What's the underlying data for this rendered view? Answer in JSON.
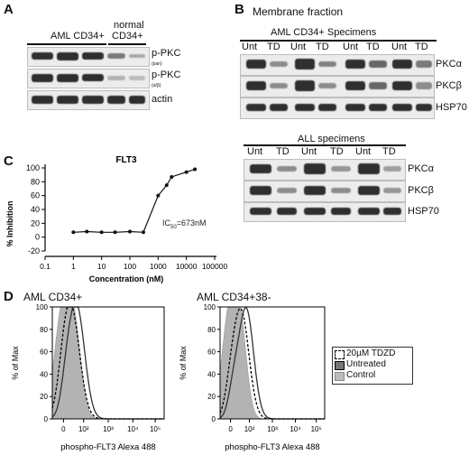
{
  "panels": {
    "a": "A",
    "b": "B",
    "c": "C",
    "d": "D"
  },
  "panel_a": {
    "group1": "AML CD34+",
    "group2_line1": "normal",
    "group2_line2": "CD34+",
    "rows": [
      {
        "label": "p-PKC",
        "sub": "(pan)"
      },
      {
        "label": "p-PKC",
        "sub": "(α/β)"
      },
      {
        "label": "actin",
        "sub": ""
      }
    ]
  },
  "panel_b": {
    "title": "Membrane fraction",
    "aml_header": "AML CD34+ Specimens",
    "all_header": "ALL specimens",
    "lane_unt": "Unt",
    "lane_td": "TD",
    "rows": [
      "PKCα",
      "PKCβ",
      "HSP70"
    ]
  },
  "chart_data": {
    "type": "line",
    "title": "FLT3",
    "xlabel": "Concentration (nM)",
    "ylabel": "% Inhibition",
    "xscale": "log",
    "xlim": [
      0.1,
      100000
    ],
    "ylim": [
      -20,
      100
    ],
    "xticks": [
      "0.1",
      "1",
      "10",
      "100",
      "1000",
      "10000",
      "100000"
    ],
    "yticks": [
      -20,
      0,
      20,
      40,
      60,
      80,
      100
    ],
    "annotation": "IC50=673nM",
    "x": [
      1,
      3,
      10,
      30,
      100,
      300,
      1000,
      2000,
      3000,
      10000,
      20000
    ],
    "y": [
      7,
      8,
      7,
      7,
      8,
      7,
      60,
      75,
      87,
      94,
      98
    ]
  },
  "panel_d": {
    "plot1_title": "AML CD34+",
    "plot2_title": "AML CD34+38-",
    "ylabel": "% of Max",
    "xlabel": "phospho-FLT3 Alexa 488",
    "yticks": [
      "0",
      "20",
      "40",
      "60",
      "80",
      "100"
    ],
    "xticks": [
      "0",
      "10²",
      "10³",
      "10⁴",
      "10⁵"
    ],
    "legend": [
      "20µM TDZD",
      "Untreated",
      "Control"
    ]
  }
}
